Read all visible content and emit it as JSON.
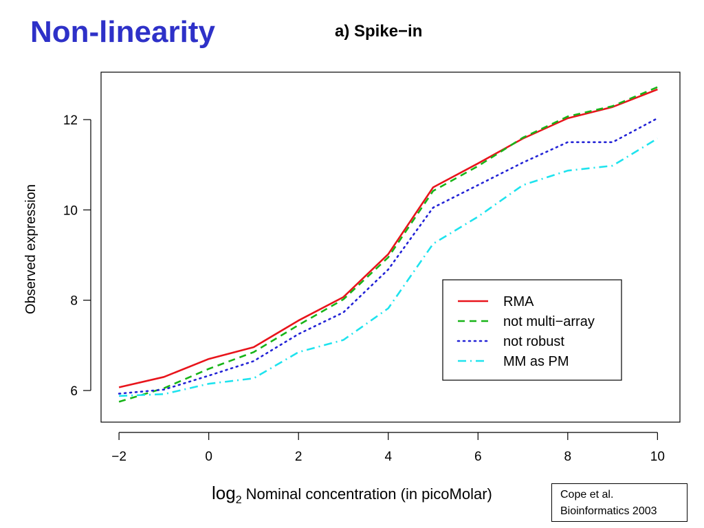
{
  "slide": {
    "title": "Non-linearity",
    "citation_line1": "Cope et al.",
    "citation_line2": "Bioinformatics 2003"
  },
  "chart_data": {
    "type": "line",
    "title": "a) Spike−in",
    "xlabel_prefix": "log",
    "xlabel_subscript": "2",
    "xlabel": "Nominal concentration (in picoMolar)",
    "ylabel": "Observed expression",
    "x": [
      -2,
      -1,
      0,
      1,
      2,
      3,
      4,
      5,
      6,
      7,
      8,
      9,
      10
    ],
    "xlim": [
      -2.4,
      10.5
    ],
    "ylim": [
      5.3,
      13.05
    ],
    "xticks": [
      -2,
      0,
      2,
      4,
      6,
      8,
      10
    ],
    "xtick_labels": [
      "−2",
      "0",
      "2",
      "4",
      "6",
      "8",
      "10"
    ],
    "yticks": [
      6,
      8,
      10,
      12
    ],
    "ytick_labels": [
      "6",
      "8",
      "10",
      "12"
    ],
    "grid": false,
    "legend_position": "bottom-right",
    "series": [
      {
        "name": "RMA",
        "color": "#e8141b",
        "dash": "solid",
        "values": [
          6.07,
          6.3,
          6.7,
          6.96,
          7.55,
          8.07,
          9.02,
          10.5,
          11.03,
          11.58,
          12.03,
          12.28,
          12.67
        ]
      },
      {
        "name": "not multi−array",
        "color": "#17b417",
        "dash": "dashed",
        "values": [
          5.75,
          6.05,
          6.48,
          6.85,
          7.45,
          8.02,
          8.95,
          10.42,
          10.97,
          11.6,
          12.07,
          12.3,
          12.72
        ]
      },
      {
        "name": "not robust",
        "color": "#2222d6",
        "dash": "dotted",
        "values": [
          5.93,
          6.02,
          6.33,
          6.65,
          7.25,
          7.73,
          8.68,
          10.05,
          10.55,
          11.05,
          11.5,
          11.5,
          12.03
        ]
      },
      {
        "name": "MM as PM",
        "color": "#1ee3ee",
        "dash": "dashdot",
        "values": [
          5.88,
          5.92,
          6.15,
          6.27,
          6.85,
          7.12,
          7.82,
          9.25,
          9.85,
          10.55,
          10.87,
          10.98,
          11.58
        ]
      }
    ]
  }
}
